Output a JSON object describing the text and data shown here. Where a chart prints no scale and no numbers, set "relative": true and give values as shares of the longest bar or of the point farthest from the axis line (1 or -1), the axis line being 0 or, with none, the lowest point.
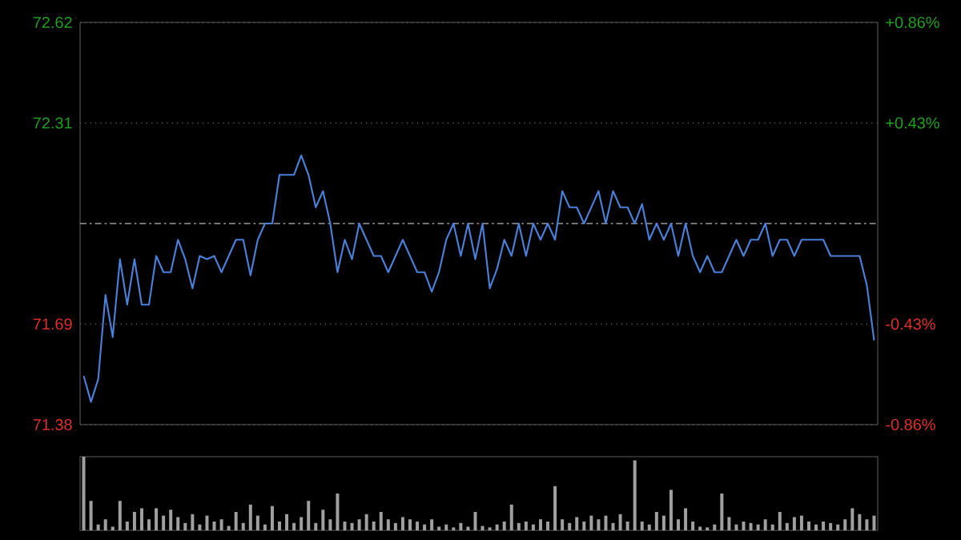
{
  "chart_data": [
    {
      "type": "line",
      "color": "#4a80d8",
      "categories": [
        null,
        null,
        null,
        null,
        null,
        null,
        null,
        null,
        null,
        null,
        null,
        null,
        null,
        null,
        null,
        null,
        null,
        null,
        null,
        null,
        null,
        null,
        null,
        null,
        null,
        null,
        null,
        null,
        null,
        null,
        null,
        null,
        null,
        null,
        null,
        null,
        null,
        null,
        null,
        null,
        null,
        null,
        null,
        null,
        null,
        null,
        null,
        null,
        null,
        null,
        null,
        null,
        null,
        null,
        null,
        null,
        null,
        null,
        null,
        null,
        null,
        null,
        null,
        null,
        null,
        null,
        null,
        null,
        null,
        null,
        null,
        null,
        null,
        null,
        null,
        null,
        null,
        null,
        null,
        null,
        null,
        null,
        null,
        null,
        null,
        null,
        null,
        null,
        null,
        null,
        null,
        null,
        null,
        null,
        null,
        null,
        null,
        null,
        null,
        null,
        null,
        null,
        null,
        null,
        null,
        null,
        null,
        null,
        null,
        null
      ],
      "values": [
        71.53,
        71.45,
        71.52,
        71.78,
        71.65,
        71.89,
        71.75,
        71.89,
        71.75,
        71.75,
        71.9,
        71.85,
        71.85,
        71.95,
        71.89,
        71.8,
        71.9,
        71.89,
        71.9,
        71.85,
        71.9,
        71.95,
        71.95,
        71.84,
        71.95,
        72.0,
        72.0,
        72.15,
        72.15,
        72.15,
        72.21,
        72.15,
        72.05,
        72.1,
        72.0,
        71.85,
        71.95,
        71.89,
        72.0,
        71.95,
        71.9,
        71.9,
        71.85,
        71.9,
        71.95,
        71.9,
        71.85,
        71.85,
        71.79,
        71.85,
        71.95,
        72.0,
        71.9,
        72.0,
        71.89,
        72.0,
        71.8,
        71.86,
        71.95,
        71.9,
        72.0,
        71.9,
        72.0,
        71.95,
        72.0,
        71.95,
        72.1,
        72.05,
        72.05,
        72.0,
        72.05,
        72.1,
        72.0,
        72.1,
        72.05,
        72.05,
        72.0,
        72.06,
        71.95,
        72.0,
        71.95,
        72.0,
        71.9,
        72.0,
        71.9,
        71.85,
        71.9,
        71.85,
        71.85,
        71.9,
        71.95,
        71.9,
        71.95,
        71.95,
        72.0,
        71.9,
        71.95,
        71.95,
        71.9,
        71.95,
        71.95,
        71.95,
        71.95,
        71.9,
        71.9,
        71.9,
        71.9,
        71.9,
        71.81,
        71.64
      ],
      "ylim": [
        71.38,
        72.62
      ],
      "yticks": [
        71.38,
        71.69,
        72.31,
        72.62
      ],
      "y2lim": [
        -0.86,
        0.86
      ],
      "y2ticks": [
        {
          "value": -0.86,
          "label": "-0.86%"
        },
        {
          "value": -0.43,
          "label": "-0.43%"
        },
        {
          "value": 0.43,
          "label": "+0.43%"
        },
        {
          "value": 0.86,
          "label": "+0.86%"
        }
      ],
      "ref_lines": [
        {
          "axis": "y",
          "value": 72.0,
          "line_style": "dashed",
          "color": "#9a9a9a"
        }
      ],
      "grid": "y"
    },
    {
      "type": "bar",
      "relative": true,
      "color": "#a0a0a0",
      "categories": [
        null,
        null,
        null,
        null,
        null,
        null,
        null,
        null,
        null,
        null,
        null,
        null,
        null,
        null,
        null,
        null,
        null,
        null,
        null,
        null,
        null,
        null,
        null,
        null,
        null,
        null,
        null,
        null,
        null,
        null,
        null,
        null,
        null,
        null,
        null,
        null,
        null,
        null,
        null,
        null,
        null,
        null,
        null,
        null,
        null,
        null,
        null,
        null,
        null,
        null,
        null,
        null,
        null,
        null,
        null,
        null,
        null,
        null,
        null,
        null,
        null,
        null,
        null,
        null,
        null,
        null,
        null,
        null,
        null,
        null,
        null,
        null,
        null,
        null,
        null,
        null,
        null,
        null,
        null,
        null,
        null,
        null,
        null,
        null,
        null,
        null,
        null,
        null,
        null,
        null,
        null,
        null,
        null,
        null,
        null,
        null,
        null,
        null,
        null,
        null,
        null,
        null,
        null,
        null,
        null,
        null,
        null,
        null,
        null,
        null
      ],
      "values": [
        1.0,
        0.4,
        0.08,
        0.15,
        0.05,
        0.4,
        0.12,
        0.25,
        0.3,
        0.15,
        0.3,
        0.2,
        0.28,
        0.18,
        0.1,
        0.22,
        0.08,
        0.2,
        0.12,
        0.15,
        0.06,
        0.25,
        0.1,
        0.35,
        0.2,
        0.08,
        0.33,
        0.12,
        0.22,
        0.1,
        0.18,
        0.4,
        0.1,
        0.28,
        0.15,
        0.5,
        0.12,
        0.1,
        0.15,
        0.22,
        0.12,
        0.25,
        0.15,
        0.1,
        0.18,
        0.15,
        0.12,
        0.08,
        0.15,
        0.05,
        0.08,
        0.04,
        0.1,
        0.05,
        0.25,
        0.06,
        0.04,
        0.08,
        0.12,
        0.35,
        0.1,
        0.12,
        0.08,
        0.15,
        0.12,
        0.6,
        0.15,
        0.1,
        0.18,
        0.12,
        0.2,
        0.15,
        0.2,
        0.1,
        0.22,
        0.12,
        0.95,
        0.12,
        0.08,
        0.25,
        0.2,
        0.55,
        0.15,
        0.3,
        0.12,
        0.05,
        0.04,
        0.08,
        0.5,
        0.18,
        0.08,
        0.12,
        0.1,
        0.08,
        0.15,
        0.08,
        0.25,
        0.1,
        0.18,
        0.2,
        0.12,
        0.08,
        0.12,
        0.1,
        0.08,
        0.15,
        0.3,
        0.22,
        0.15,
        0.2
      ]
    }
  ]
}
